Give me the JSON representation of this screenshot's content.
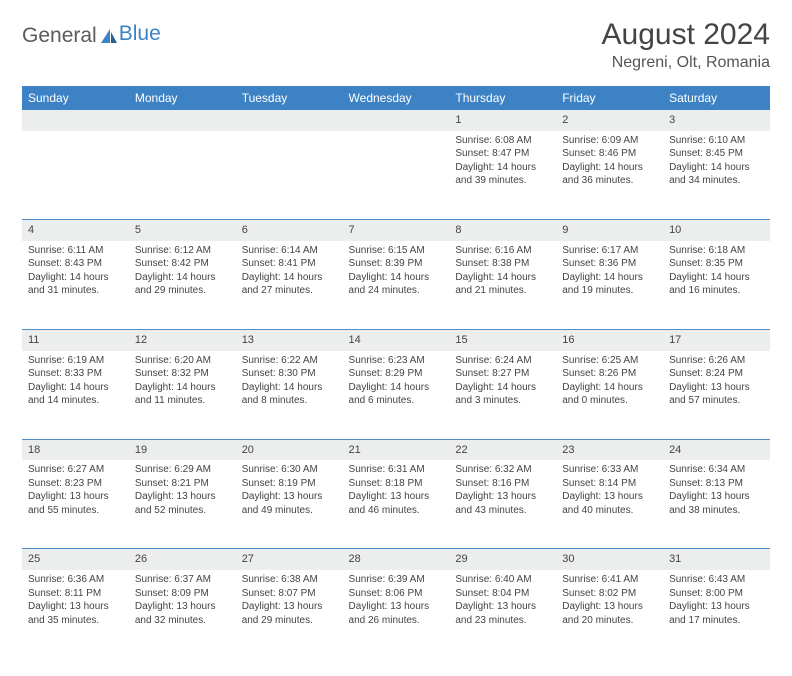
{
  "brand": {
    "word1": "General",
    "word2": "Blue"
  },
  "header": {
    "title": "August 2024",
    "location": "Negreni, Olt, Romania"
  },
  "colors": {
    "header_bg": "#3d82c4",
    "header_text": "#ffffff",
    "daynum_bg": "#eceded",
    "sep": "#3d82c4"
  },
  "weekdays": [
    "Sunday",
    "Monday",
    "Tuesday",
    "Wednesday",
    "Thursday",
    "Friday",
    "Saturday"
  ],
  "weeks": [
    [
      null,
      null,
      null,
      null,
      {
        "n": 1,
        "sr": "6:08 AM",
        "ss": "8:47 PM",
        "dl": "14 hours and 39 minutes."
      },
      {
        "n": 2,
        "sr": "6:09 AM",
        "ss": "8:46 PM",
        "dl": "14 hours and 36 minutes."
      },
      {
        "n": 3,
        "sr": "6:10 AM",
        "ss": "8:45 PM",
        "dl": "14 hours and 34 minutes."
      }
    ],
    [
      {
        "n": 4,
        "sr": "6:11 AM",
        "ss": "8:43 PM",
        "dl": "14 hours and 31 minutes."
      },
      {
        "n": 5,
        "sr": "6:12 AM",
        "ss": "8:42 PM",
        "dl": "14 hours and 29 minutes."
      },
      {
        "n": 6,
        "sr": "6:14 AM",
        "ss": "8:41 PM",
        "dl": "14 hours and 27 minutes."
      },
      {
        "n": 7,
        "sr": "6:15 AM",
        "ss": "8:39 PM",
        "dl": "14 hours and 24 minutes."
      },
      {
        "n": 8,
        "sr": "6:16 AM",
        "ss": "8:38 PM",
        "dl": "14 hours and 21 minutes."
      },
      {
        "n": 9,
        "sr": "6:17 AM",
        "ss": "8:36 PM",
        "dl": "14 hours and 19 minutes."
      },
      {
        "n": 10,
        "sr": "6:18 AM",
        "ss": "8:35 PM",
        "dl": "14 hours and 16 minutes."
      }
    ],
    [
      {
        "n": 11,
        "sr": "6:19 AM",
        "ss": "8:33 PM",
        "dl": "14 hours and 14 minutes."
      },
      {
        "n": 12,
        "sr": "6:20 AM",
        "ss": "8:32 PM",
        "dl": "14 hours and 11 minutes."
      },
      {
        "n": 13,
        "sr": "6:22 AM",
        "ss": "8:30 PM",
        "dl": "14 hours and 8 minutes."
      },
      {
        "n": 14,
        "sr": "6:23 AM",
        "ss": "8:29 PM",
        "dl": "14 hours and 6 minutes."
      },
      {
        "n": 15,
        "sr": "6:24 AM",
        "ss": "8:27 PM",
        "dl": "14 hours and 3 minutes."
      },
      {
        "n": 16,
        "sr": "6:25 AM",
        "ss": "8:26 PM",
        "dl": "14 hours and 0 minutes."
      },
      {
        "n": 17,
        "sr": "6:26 AM",
        "ss": "8:24 PM",
        "dl": "13 hours and 57 minutes."
      }
    ],
    [
      {
        "n": 18,
        "sr": "6:27 AM",
        "ss": "8:23 PM",
        "dl": "13 hours and 55 minutes."
      },
      {
        "n": 19,
        "sr": "6:29 AM",
        "ss": "8:21 PM",
        "dl": "13 hours and 52 minutes."
      },
      {
        "n": 20,
        "sr": "6:30 AM",
        "ss": "8:19 PM",
        "dl": "13 hours and 49 minutes."
      },
      {
        "n": 21,
        "sr": "6:31 AM",
        "ss": "8:18 PM",
        "dl": "13 hours and 46 minutes."
      },
      {
        "n": 22,
        "sr": "6:32 AM",
        "ss": "8:16 PM",
        "dl": "13 hours and 43 minutes."
      },
      {
        "n": 23,
        "sr": "6:33 AM",
        "ss": "8:14 PM",
        "dl": "13 hours and 40 minutes."
      },
      {
        "n": 24,
        "sr": "6:34 AM",
        "ss": "8:13 PM",
        "dl": "13 hours and 38 minutes."
      }
    ],
    [
      {
        "n": 25,
        "sr": "6:36 AM",
        "ss": "8:11 PM",
        "dl": "13 hours and 35 minutes."
      },
      {
        "n": 26,
        "sr": "6:37 AM",
        "ss": "8:09 PM",
        "dl": "13 hours and 32 minutes."
      },
      {
        "n": 27,
        "sr": "6:38 AM",
        "ss": "8:07 PM",
        "dl": "13 hours and 29 minutes."
      },
      {
        "n": 28,
        "sr": "6:39 AM",
        "ss": "8:06 PM",
        "dl": "13 hours and 26 minutes."
      },
      {
        "n": 29,
        "sr": "6:40 AM",
        "ss": "8:04 PM",
        "dl": "13 hours and 23 minutes."
      },
      {
        "n": 30,
        "sr": "6:41 AM",
        "ss": "8:02 PM",
        "dl": "13 hours and 20 minutes."
      },
      {
        "n": 31,
        "sr": "6:43 AM",
        "ss": "8:00 PM",
        "dl": "13 hours and 17 minutes."
      }
    ]
  ],
  "labels": {
    "sunrise": "Sunrise: ",
    "sunset": "Sunset: ",
    "daylight": "Daylight: "
  }
}
